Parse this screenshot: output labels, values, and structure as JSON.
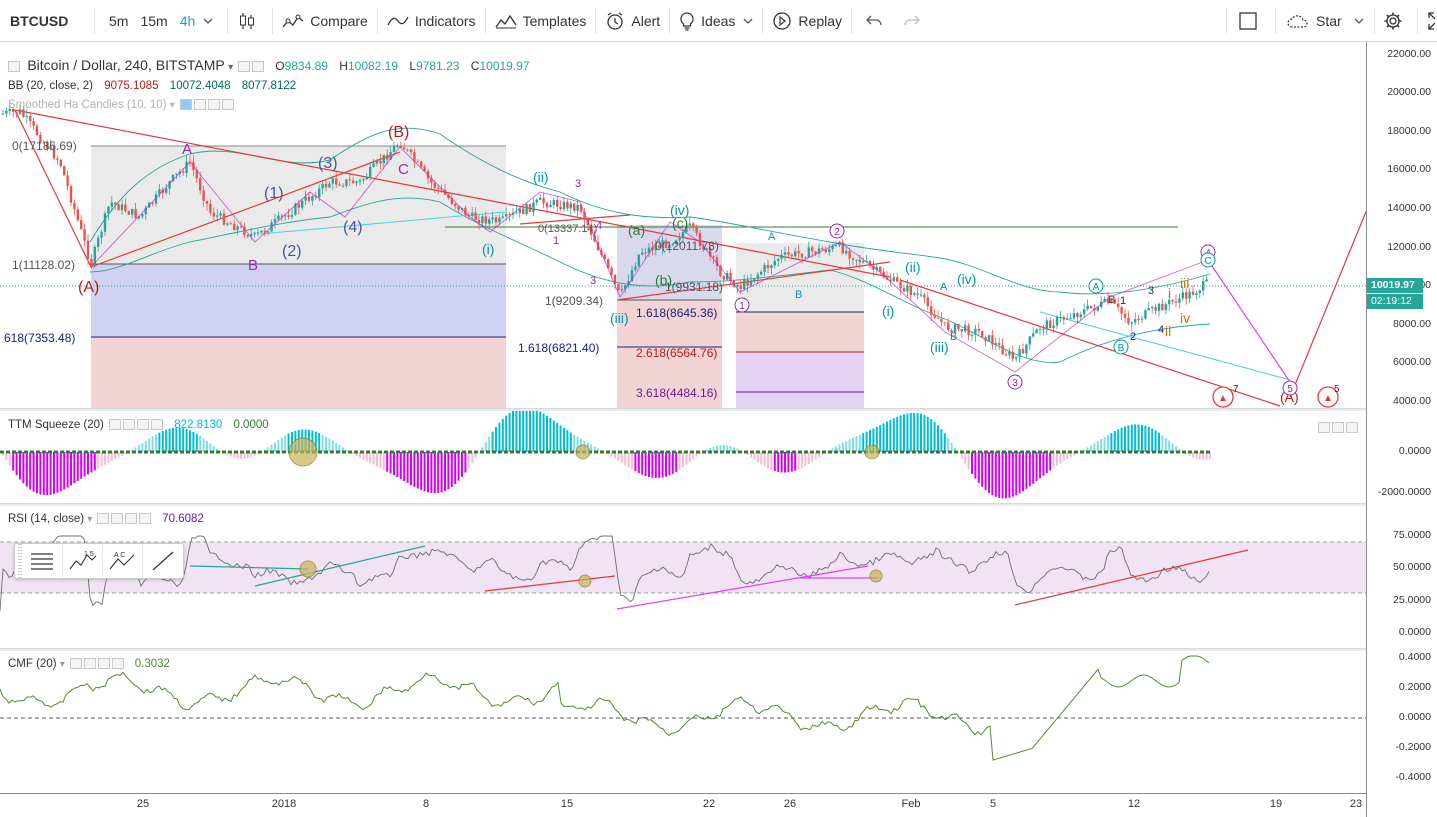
{
  "toolbar": {
    "symbol": "BTCUSD",
    "intervals": [
      "5m",
      "15m",
      "4h"
    ],
    "active_interval": "4h",
    "compare": "Compare",
    "indicators": "Indicators",
    "templates": "Templates",
    "alert": "Alert",
    "ideas": "Ideas",
    "replay": "Replay",
    "star": "Star"
  },
  "main": {
    "title": "Bitcoin / Dollar, 240, BITSTAMP",
    "ohlc": {
      "o_label": "O",
      "o": "9834.89",
      "h_label": "H",
      "h": "10082.19",
      "l_label": "L",
      "l": "9781.23",
      "c_label": "C",
      "c": "10019.97"
    },
    "bb": {
      "name": "BB (20, close, 2)",
      "v1": "9075.1085",
      "v2": "10072.4048",
      "v3": "8077.8122"
    },
    "ha": {
      "name": "Smoothed Ha Candles (10, 10)"
    },
    "last_price": "10019.97",
    "countdown": "02:19:12",
    "fib_labels": [
      "0(17185.69)",
      "1(11128.02)",
      "618(7353.48)",
      "0(13337.14)",
      "1(9209.34)",
      "1.618(6821.40)",
      "0(12011.78)",
      "1(9931.18)",
      "1.618(8645.36)",
      "2.618(6564.76)",
      "3.618(4484.16)"
    ],
    "wave_labels": [
      "(A)",
      "(B)",
      "A",
      "B",
      "C",
      "(1)",
      "(2)",
      "(3)",
      "(4)",
      "(A)",
      "(B)",
      "(C)",
      "(i)",
      "(ii)",
      "(iii)",
      "(iv)",
      "(a)",
      "(b)",
      "(c)",
      "i",
      "ii",
      "iii",
      "iv",
      "3",
      "4",
      "5",
      "1",
      "2",
      "B",
      "C"
    ],
    "event_counts": [
      "7",
      "5"
    ]
  },
  "ttm": {
    "name": "TTM Squeeze (20)",
    "v1": "822.8130",
    "v2": "0.0000"
  },
  "rsi": {
    "name": "RSI (14, close)",
    "v1": "70.6082"
  },
  "cmf": {
    "name": "CMF (20)",
    "v1": "0.3032"
  },
  "price_axis": [
    "22000.00",
    "20000.00",
    "18000.00",
    "16000.00",
    "14000.00",
    "12000.00",
    "10000.00",
    "8000.00",
    "6000.00",
    "4000.00"
  ],
  "ttm_axis": [
    "0.0000",
    "-2000.0000"
  ],
  "rsi_axis": [
    "75.0000",
    "50.0000",
    "25.0000",
    "0.0000"
  ],
  "cmf_axis": [
    "0.4000",
    "0.2000",
    "0.0000",
    "-0.2000",
    "-0.4000"
  ],
  "time_axis": [
    "25",
    "2018",
    "8",
    "15",
    "22",
    "26",
    "Feb",
    "5",
    "12",
    "19",
    "23"
  ],
  "draw_tools": [
    "lines-icon",
    "elliott-impulse-icon",
    "elliott-correction-icon",
    "trendline-icon"
  ],
  "draw_tool_labels": {
    "impulse": "1 5",
    "correction": "A C"
  },
  "colors": {
    "accent": "#2196f3",
    "up": "#26a69a",
    "down": "#ef5350",
    "price_tag": "#26a69a"
  }
}
